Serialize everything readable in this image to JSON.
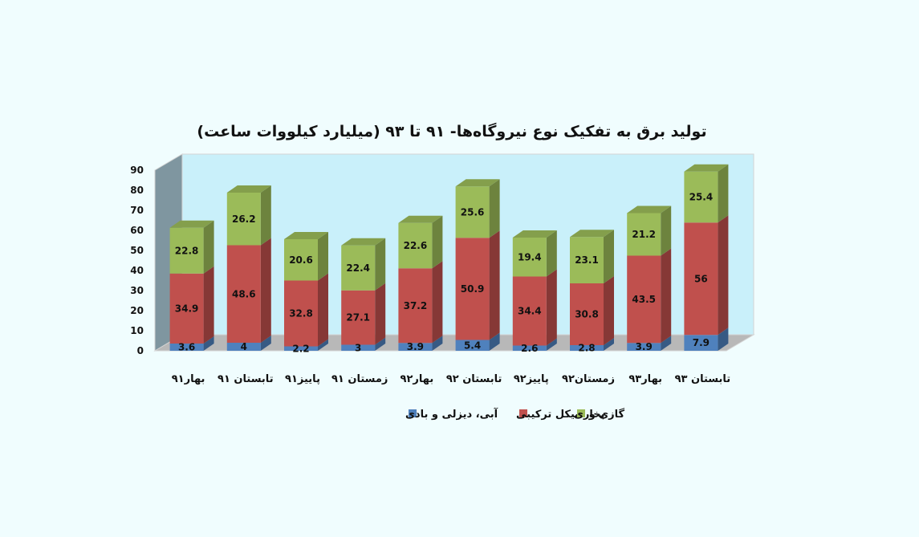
{
  "chart_data": {
    "type": "bar",
    "stacked": true,
    "three_d": true,
    "title": "تولید برق به تفکیک نوع نیروگاه‌ها- ۹۱ تا ۹۳ (میلیارد کیلووات ساعت)",
    "xlabel": "",
    "ylabel": "",
    "ylim": [
      0,
      90
    ],
    "yticks": [
      0,
      10,
      20,
      30,
      40,
      50,
      60,
      70,
      80,
      90
    ],
    "categories": [
      "بهار۹۱",
      "تابستان ۹۱",
      "پاییز۹۱",
      "زمستان ۹۱",
      "بهار۹۲",
      "تابستان ۹۲",
      "پاییز۹۲",
      "زمستان۹۲",
      "بهار۹۳",
      "تابستان ۹۳"
    ],
    "series": [
      {
        "name": "آبی، دیزلی و بادی",
        "color": "#4f81bd",
        "values": [
          3.6,
          4,
          2.2,
          3,
          3.9,
          5.4,
          2.6,
          2.8,
          3.9,
          7.9
        ]
      },
      {
        "name": "گازی و سیکل ترکیبی",
        "color": "#c0504d",
        "values": [
          34.9,
          48.6,
          32.8,
          27.1,
          37.2,
          50.9,
          34.4,
          30.8,
          43.5,
          56
        ]
      },
      {
        "name": "بخاری",
        "color": "#9bbb59",
        "values": [
          22.8,
          26.2,
          20.6,
          22.4,
          22.6,
          25.6,
          19.4,
          23.1,
          21.2,
          25.4
        ]
      }
    ],
    "legend_position": "bottom",
    "grid": false
  }
}
